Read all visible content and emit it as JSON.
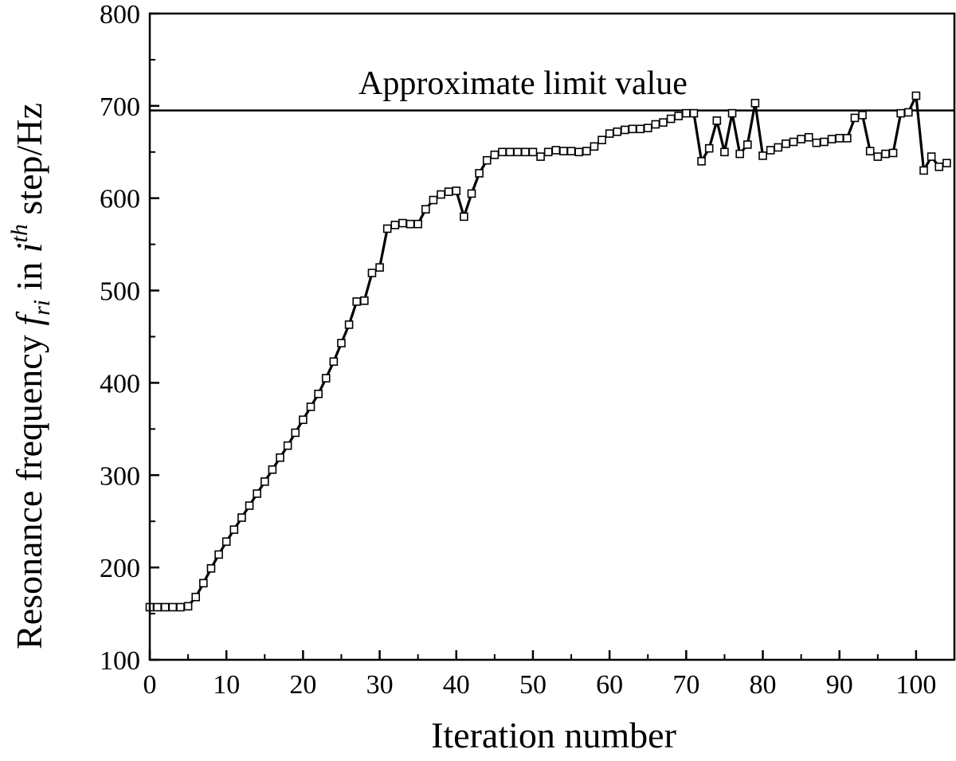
{
  "chart_data": {
    "type": "line",
    "xlabel": "Iteration number",
    "ylabel": {
      "prefix": "Resonance frequency ",
      "f": "f",
      "f_sub": "ri",
      "in": " in ",
      "i": "i",
      "th": "th",
      "suffix": " step/Hz"
    },
    "xlim": [
      0,
      105
    ],
    "ylim": [
      100,
      800
    ],
    "xticks": [
      0,
      10,
      20,
      30,
      40,
      50,
      60,
      70,
      80,
      90,
      100
    ],
    "yticks": [
      100,
      200,
      300,
      400,
      500,
      600,
      700,
      800
    ],
    "grid": false,
    "reference_line": {
      "y": 695,
      "label": "Approximate limit value"
    },
    "series": [
      {
        "marker": "open-square",
        "color": "#000000",
        "x": [
          0,
          1,
          2,
          3,
          4,
          5,
          6,
          7,
          8,
          9,
          10,
          11,
          12,
          13,
          14,
          15,
          16,
          17,
          18,
          19,
          20,
          21,
          22,
          23,
          24,
          25,
          26,
          27,
          28,
          29,
          30,
          31,
          32,
          33,
          34,
          35,
          36,
          37,
          38,
          39,
          40,
          41,
          42,
          43,
          44,
          45,
          46,
          47,
          48,
          49,
          50,
          51,
          52,
          53,
          54,
          55,
          56,
          57,
          58,
          59,
          60,
          61,
          62,
          63,
          64,
          65,
          66,
          67,
          68,
          69,
          70,
          71,
          72,
          73,
          74,
          75,
          76,
          77,
          78,
          79,
          80,
          81,
          82,
          83,
          84,
          85,
          86,
          87,
          88,
          89,
          90,
          91,
          92,
          93,
          94,
          95,
          96,
          97,
          98,
          99,
          100,
          101,
          102,
          103,
          104
        ],
        "y": [
          157,
          157,
          157,
          157,
          157,
          158,
          168,
          183,
          199,
          214,
          228,
          241,
          254,
          267,
          280,
          293,
          306,
          319,
          332,
          346,
          360,
          374,
          388,
          405,
          423,
          443,
          463,
          488,
          489,
          519,
          525,
          567,
          571,
          573,
          572,
          572,
          588,
          598,
          604,
          607,
          608,
          580,
          605,
          627,
          641,
          647,
          650,
          650,
          650,
          650,
          650,
          645,
          650,
          652,
          651,
          651,
          650,
          651,
          656,
          663,
          670,
          672,
          674,
          675,
          675,
          676,
          680,
          682,
          686,
          689,
          692,
          692,
          640,
          654,
          684,
          650,
          692,
          648,
          658,
          703,
          646,
          652,
          655,
          659,
          661,
          664,
          666,
          660,
          661,
          664,
          665,
          665,
          687,
          690,
          651,
          645,
          648,
          649,
          692,
          693,
          711,
          630,
          645,
          634,
          638
        ]
      }
    ]
  }
}
